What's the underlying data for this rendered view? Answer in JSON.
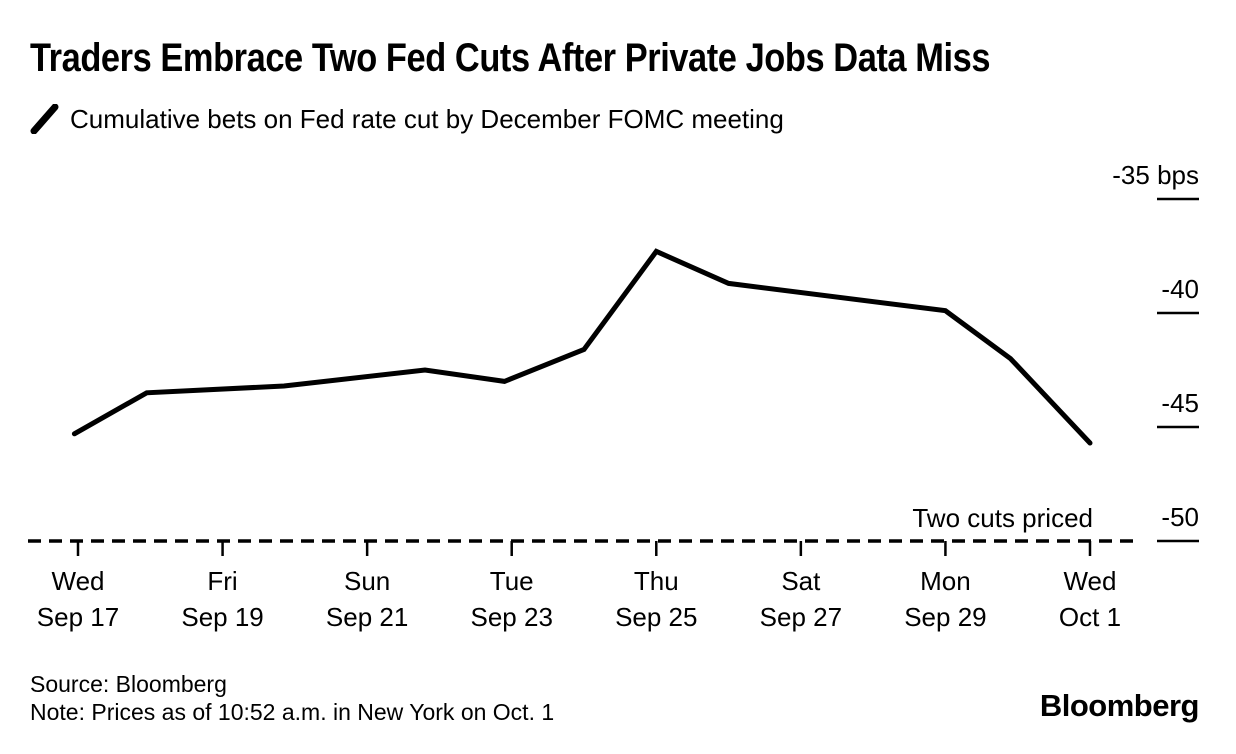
{
  "chart_data": {
    "type": "line",
    "title": "Traders Embrace Two Fed Cuts After Private Jobs Data Miss",
    "unit": "bps",
    "line_color": "#000000",
    "series": [
      {
        "name": "Cumulative bets on Fed rate cut by December FOMC meeting",
        "color": "#000000",
        "points_note": "x = days since Sep 17, y = cumulative cut priced in bps",
        "points": [
          [
            -0.05,
            -45.3
          ],
          [
            0.95,
            -43.5
          ],
          [
            2.85,
            -43.2
          ],
          [
            4.8,
            -42.5
          ],
          [
            5.9,
            -43.0
          ],
          [
            7.0,
            -41.6
          ],
          [
            8.0,
            -37.3
          ],
          [
            9.0,
            -38.7
          ],
          [
            12.0,
            -39.9
          ],
          [
            12.9,
            -42.0
          ],
          [
            14.0,
            -45.7
          ]
        ]
      }
    ],
    "x_ticks": [
      {
        "pos": 0,
        "line1": "Wed",
        "line2": "Sep 17"
      },
      {
        "pos": 2,
        "line1": "Fri",
        "line2": "Sep 19"
      },
      {
        "pos": 4,
        "line1": "Sun",
        "line2": "Sep 21"
      },
      {
        "pos": 6,
        "line1": "Tue",
        "line2": "Sep 23"
      },
      {
        "pos": 8,
        "line1": "Thu",
        "line2": "Sep 25"
      },
      {
        "pos": 10,
        "line1": "Sat",
        "line2": "Sep 27"
      },
      {
        "pos": 12,
        "line1": "Mon",
        "line2": "Sep 29"
      },
      {
        "pos": 14,
        "line1": "Wed",
        "line2": "Oct 1"
      }
    ],
    "y_ticks": [
      {
        "value": -35,
        "label": "-35 bps"
      },
      {
        "value": -40,
        "label": "-40"
      },
      {
        "value": -45,
        "label": "-45"
      },
      {
        "value": -50,
        "label": "-50"
      }
    ],
    "ylim": [
      -50,
      -35
    ],
    "grid": "off",
    "legend_position": "top-left",
    "baseline": {
      "value": -50,
      "style": "dashed",
      "annotation": "Two cuts priced"
    }
  },
  "footer": {
    "source": "Source: Bloomberg",
    "note": "Note: Prices as of 10:52 a.m. in New York on Oct. 1",
    "logo": "Bloomberg"
  }
}
